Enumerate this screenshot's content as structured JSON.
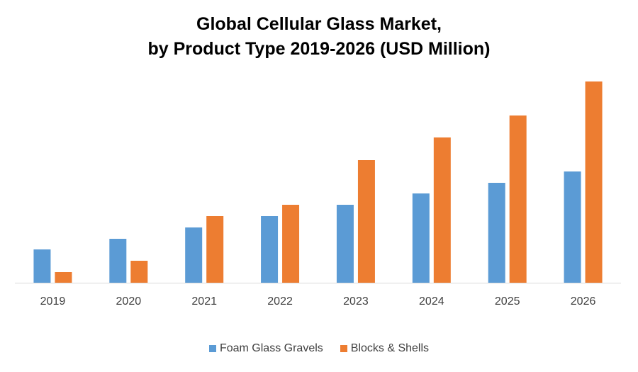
{
  "chart_data": {
    "type": "bar",
    "title_lines": [
      "Global Cellular Glass Market,",
      "by Product Type 2019-2026 (USD Million)"
    ],
    "categories": [
      "2019",
      "2020",
      "2021",
      "2022",
      "2023",
      "2024",
      "2025",
      "2026"
    ],
    "series": [
      {
        "name": "Foam Glass Gravels",
        "color": "#5B9BD5",
        "values": [
          47,
          62,
          78,
          94,
          110,
          126,
          141,
          157
        ]
      },
      {
        "name": "Blocks & Shells",
        "color": "#ED7D31",
        "values": [
          15,
          31,
          94,
          110,
          173,
          205,
          236,
          284
        ]
      }
    ],
    "ylim": [
      0,
      300
    ],
    "y_axis_visible": false,
    "grid": false,
    "legend": "bottom"
  }
}
